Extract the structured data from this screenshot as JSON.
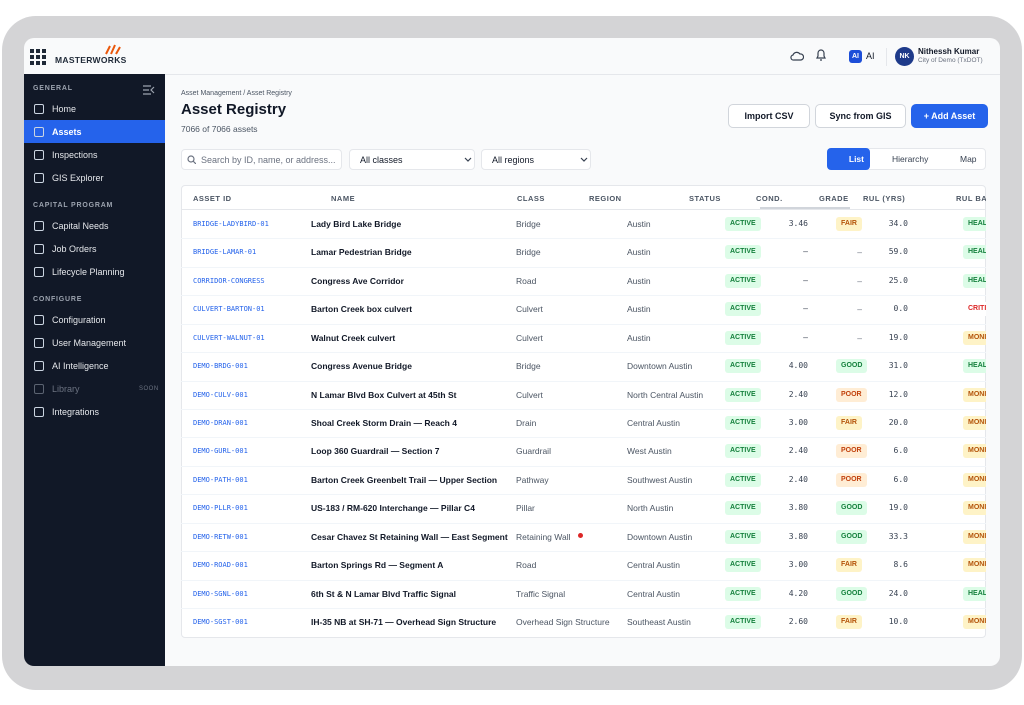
{
  "topbar": {
    "logo": "MASTERWORKS",
    "ai": "AI",
    "avatar": "NK",
    "user_name": "Nithessh Kumar",
    "user_org": "City of Demo (TxDOT)"
  },
  "sidebar": {
    "sections": [
      {
        "title": "GENERAL",
        "items": [
          "Home",
          "Assets",
          "Inspections",
          "GIS Explorer"
        ]
      },
      {
        "title": "CAPITAL PROGRAM",
        "items": [
          "Capital Needs",
          "Job Orders",
          "Lifecycle Planning"
        ]
      },
      {
        "title": "CONFIGURE",
        "items": [
          "Configuration",
          "User Management",
          "AI Intelligence",
          "Library",
          "Integrations"
        ]
      }
    ],
    "soon": "SOON"
  },
  "header": {
    "breadcrumb": [
      "Asset Management",
      "/",
      "Asset Registry"
    ],
    "title": "Asset Registry",
    "subtitle": "7066 of 7066 assets",
    "buttons": [
      "Import CSV",
      "Sync from GIS",
      "+ Add Asset"
    ]
  },
  "filters": {
    "search": "Search by ID, name, or address...",
    "classes": "All classes",
    "regions": "All regions",
    "views": [
      "List",
      "Hierarchy",
      "Map"
    ]
  },
  "table": {
    "columns": [
      "ASSET ID",
      "NAME",
      "CLASS",
      "REGION",
      "STATUS",
      "COND.",
      "GRADE",
      "RUL (YRS)",
      "RUL BA"
    ],
    "rows": [
      [
        "BRIDGE-LADYBIRD-01",
        "Lady Bird Lake Bridge",
        "Bridge",
        "Austin",
        "ACTIVE",
        "3.46",
        "FAIR",
        "34.0",
        "HEAL"
      ],
      [
        "BRIDGE-LAMAR-01",
        "Lamar Pedestrian Bridge",
        "Bridge",
        "Austin",
        "ACTIVE",
        "–",
        "–",
        "59.0",
        "HEAL"
      ],
      [
        "CORRIDOR-CONGRESS",
        "Congress Ave Corridor",
        "Road",
        "Austin",
        "ACTIVE",
        "–",
        "–",
        "25.0",
        "HEAL"
      ],
      [
        "CULVERT-BARTON-01",
        "Barton Creek box culvert",
        "Culvert",
        "Austin",
        "ACTIVE",
        "–",
        "–",
        "0.0",
        "CRITI"
      ],
      [
        "CULVERT-WALNUT-01",
        "Walnut Creek culvert",
        "Culvert",
        "Austin",
        "ACTIVE",
        "–",
        "–",
        "19.0",
        "MONI"
      ],
      [
        "DEMO-BRDG-001",
        "Congress Avenue Bridge",
        "Bridge",
        "Downtown Austin",
        "ACTIVE",
        "4.00",
        "GOOD",
        "31.0",
        "HEAL"
      ],
      [
        "DEMO-CULV-001",
        "N Lamar Blvd Box Culvert at 45th St",
        "Culvert",
        "North Central Austin",
        "ACTIVE",
        "2.40",
        "POOR",
        "12.0",
        "MONI"
      ],
      [
        "DEMO-DRAN-001",
        "Shoal Creek Storm Drain — Reach 4",
        "Drain",
        "Central Austin",
        "ACTIVE",
        "3.00",
        "FAIR",
        "20.0",
        "MONI"
      ],
      [
        "DEMO-GURL-001",
        "Loop 360 Guardrail — Section 7",
        "Guardrail",
        "West Austin",
        "ACTIVE",
        "2.40",
        "POOR",
        "6.0",
        "MONI"
      ],
      [
        "DEMO-PATH-001",
        "Barton Creek Greenbelt Trail — Upper Section",
        "Pathway",
        "Southwest Austin",
        "ACTIVE",
        "2.40",
        "POOR",
        "6.0",
        "MONI"
      ],
      [
        "DEMO-PLLR-001",
        "US-183 / RM-620 Interchange — Pillar C4",
        "Pillar",
        "North Austin",
        "ACTIVE",
        "3.80",
        "GOOD",
        "19.0",
        "MONI"
      ],
      [
        "DEMO-RETW-001",
        "Cesar Chavez St Retaining Wall — East Segment",
        "Retaining Wall",
        "Downtown Austin",
        "ACTIVE",
        "3.80",
        "GOOD",
        "33.3",
        "MONI"
      ],
      [
        "DEMO-ROAD-001",
        "Barton Springs Rd — Segment A",
        "Road",
        "Central Austin",
        "ACTIVE",
        "3.00",
        "FAIR",
        "8.6",
        "MONI"
      ],
      [
        "DEMO-SGNL-001",
        "6th St & N Lamar Blvd Traffic Signal",
        "Traffic Signal",
        "Central Austin",
        "ACTIVE",
        "4.20",
        "GOOD",
        "24.0",
        "HEAL"
      ],
      [
        "DEMO-SGST-001",
        "IH-35 NB at SH-71 — Overhead Sign Structure",
        "Overhead Sign Structure",
        "Southeast Austin",
        "ACTIVE",
        "2.60",
        "FAIR",
        "10.0",
        "MONI"
      ]
    ],
    "badge_colors": {
      "ACTIVE": [
        "#dcfce7",
        "#15803d"
      ],
      "FAIR": [
        "#fef3c7",
        "#b45309"
      ],
      "GOOD": [
        "#dcfce7",
        "#15803d"
      ],
      "POOR": [
        "#ffedd5",
        "#c2410c"
      ],
      "HEAL": [
        "#dcfce7",
        "#15803d"
      ],
      "MONI": [
        "#fef3c7",
        "#b45309"
      ],
      "CRITI": [
        "#ffffff",
        "#dc2626"
      ]
    }
  }
}
